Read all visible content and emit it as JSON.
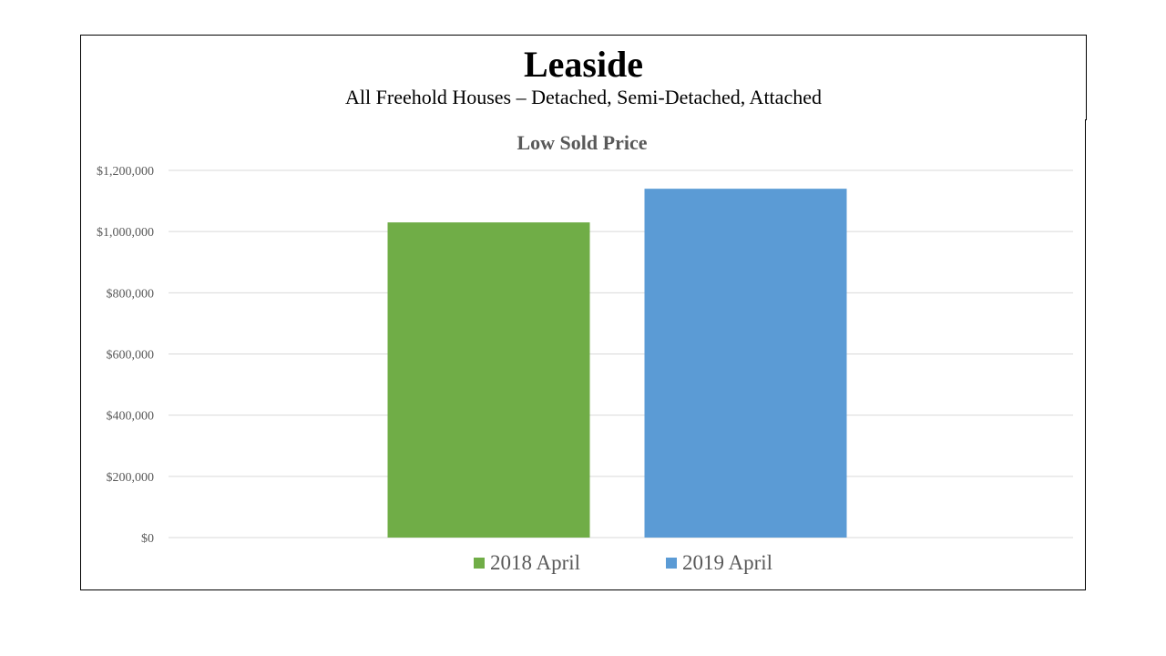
{
  "header": {
    "title": "Leaside",
    "subtitle": "All Freehold Houses – Detached, Semi-Detached, Attached"
  },
  "chart_data": {
    "type": "bar",
    "title": "Low Sold Price",
    "xlabel": "",
    "ylabel": "",
    "categories": [
      ""
    ],
    "series": [
      {
        "name": "2018 April",
        "values": [
          1030000
        ],
        "color": "#70AD47"
      },
      {
        "name": "2019 April",
        "values": [
          1140000
        ],
        "color": "#5B9BD5"
      }
    ],
    "ylim": [
      0,
      1200000
    ],
    "yticks": [
      0,
      200000,
      400000,
      600000,
      800000,
      1000000,
      1200000
    ],
    "ytick_labels": [
      "$0",
      "$200,000",
      "$400,000",
      "$600,000",
      "$800,000",
      "$1,000,000",
      "$1,200,000"
    ],
    "grid": true,
    "legend_position": "bottom"
  },
  "colors": {
    "gridline": "#D9D9D9",
    "axis_text": "#595959",
    "title_text": "#595959"
  }
}
